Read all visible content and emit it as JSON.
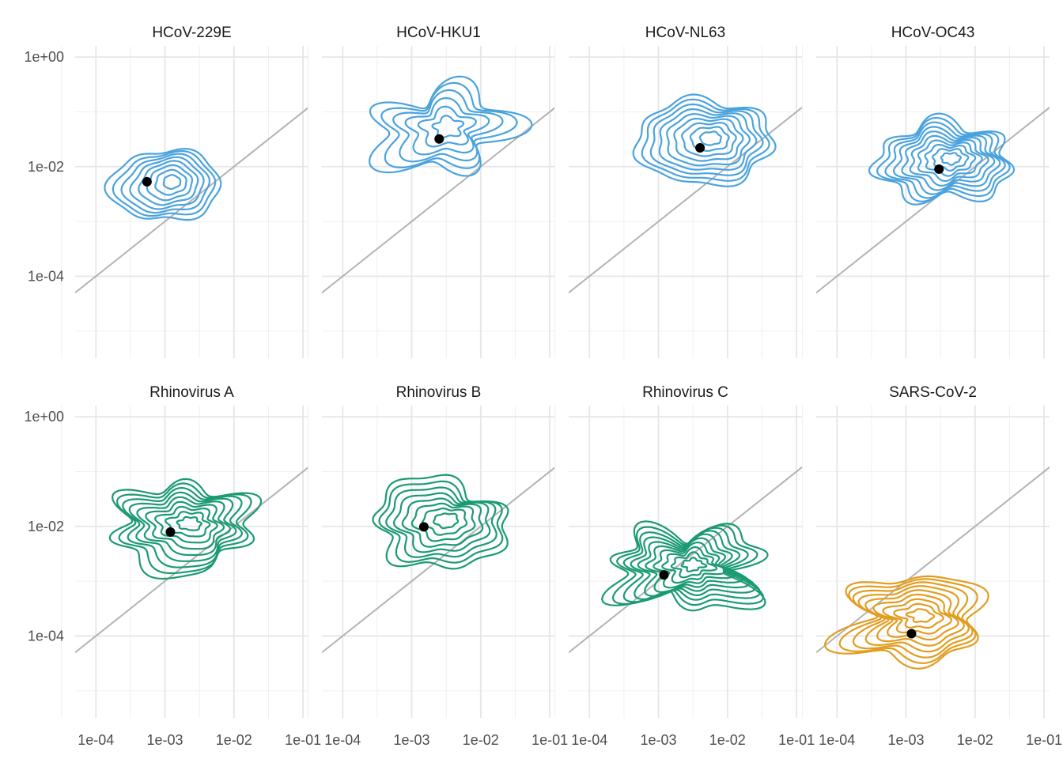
{
  "chart_data": {
    "type": "contour",
    "facet_layout": {
      "rows": 2,
      "cols": 4
    },
    "x_scale": "log10",
    "y_scale": "log10",
    "xlim": [
      5e-05,
      0.12
    ],
    "ylim": [
      3.2e-06,
      1.6
    ],
    "x_ticks": [
      0.0001,
      0.001,
      0.01,
      0.1
    ],
    "x_tick_labels": [
      "1e-04",
      "1e-03",
      "1e-02",
      "1e-01"
    ],
    "y_ticks": [
      0.0001,
      0.01,
      1
    ],
    "y_tick_labels": [
      "1e-04",
      "1e-02",
      "1e+00"
    ],
    "reference_line": "y = x",
    "grid": true,
    "colors": {
      "coronavirus": "#4ba3dd",
      "rhinovirus": "#1b9a73",
      "sars": "#e29d1f",
      "point": "#000000",
      "reference": "#b3b3b3"
    },
    "panels": [
      {
        "title": "HCoV-229E",
        "color": "#4ba3dd",
        "point": [
          0.00055,
          0.0053
        ],
        "density_peak": [
          0.001,
          0.0045
        ],
        "spread": [
          0.33,
          0.3
        ],
        "levels": 8
      },
      {
        "title": "HCoV-HKU1",
        "color": "#4ba3dd",
        "point": [
          0.0025,
          0.032
        ],
        "density_peak": [
          0.0027,
          0.045
        ],
        "spread": [
          0.43,
          0.34
        ],
        "levels": 6
      },
      {
        "title": "HCoV-NL63",
        "color": "#4ba3dd",
        "point": [
          0.004,
          0.022
        ],
        "density_peak": [
          0.0045,
          0.028
        ],
        "spread": [
          0.43,
          0.34
        ],
        "levels": 9
      },
      {
        "title": "HCoV-OC43",
        "color": "#4ba3dd",
        "point": [
          0.003,
          0.009
        ],
        "density_peak": [
          0.0035,
          0.012
        ],
        "spread": [
          0.42,
          0.31
        ],
        "levels": 10
      },
      {
        "title": "Rhinovirus A",
        "color": "#1b9a73",
        "point": [
          0.0012,
          0.0079
        ],
        "density_peak": [
          0.0018,
          0.0095
        ],
        "spread": [
          0.45,
          0.34
        ],
        "levels": 9
      },
      {
        "title": "Rhinovirus B",
        "color": "#1b9a73",
        "point": [
          0.0015,
          0.0098
        ],
        "density_peak": [
          0.0025,
          0.011
        ],
        "spread": [
          0.42,
          0.35
        ],
        "levels": 8
      },
      {
        "title": "Rhinovirus C",
        "color": "#1b9a73",
        "point": [
          0.0012,
          0.0013
        ],
        "density_peak": [
          0.0025,
          0.0017
        ],
        "spread": [
          0.46,
          0.32
        ],
        "levels": 10
      },
      {
        "title": "SARS-CoV-2",
        "color": "#e29d1f",
        "point": [
          0.0012,
          0.00011
        ],
        "density_peak": [
          0.0013,
          0.0002
        ],
        "spread": [
          0.46,
          0.33
        ],
        "levels": 9
      }
    ]
  }
}
